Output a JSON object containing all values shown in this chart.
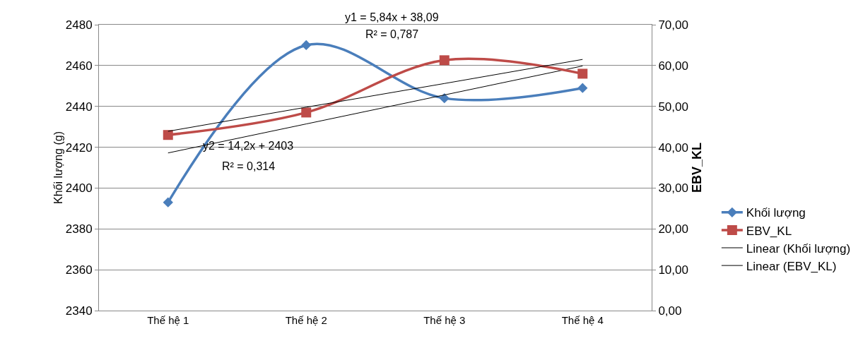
{
  "chart_data": {
    "type": "line",
    "ylabel": "Khối lượng (g)",
    "y2label": "EBV_KL",
    "categories": [
      "Thế hệ 1",
      "Thế hệ 2",
      "Thế hệ 3",
      "Thế hệ 4"
    ],
    "series": [
      {
        "name": "Khối lượng",
        "color": "#4a7ebb",
        "values": [
          2393,
          2470,
          2444,
          2449
        ],
        "marker": "diamond"
      },
      {
        "name": "EBV_KL",
        "color": "#be4b48",
        "values": [
          43,
          48.5,
          61.3,
          58
        ],
        "axis": "y2",
        "marker": "square"
      },
      {
        "name": "Linear (Khối lượng)",
        "color": "#000000",
        "values": [
          2417.2,
          2431.4,
          2445.6,
          2459.8
        ],
        "marker": "none"
      },
      {
        "name": "Linear (EBV_KL)",
        "color": "#000000",
        "values": [
          43.9,
          49.8,
          55.6,
          61.5
        ],
        "axis": "y2",
        "marker": "none"
      }
    ],
    "ylim": [
      2340,
      2480
    ],
    "yticks": [
      2340,
      2360,
      2380,
      2400,
      2420,
      2440,
      2460,
      2480
    ],
    "y2lim": [
      0,
      70
    ],
    "y2ticks": [
      {
        "value": 0,
        "label": "0,00"
      },
      {
        "value": 10,
        "label": "10,00"
      },
      {
        "value": 20,
        "label": "20,00"
      },
      {
        "value": 30,
        "label": "30,00"
      },
      {
        "value": 40,
        "label": "40,00"
      },
      {
        "value": 50,
        "label": "50,00"
      },
      {
        "value": 60,
        "label": "60,00"
      },
      {
        "value": 70,
        "label": "70,00"
      }
    ],
    "annotations": [
      "y1 = 5,84x + 38,09",
      "R² = 0,787",
      "y2 = 14,2x + 2403",
      "R² = 0,314"
    ],
    "grid": "y",
    "legend": "right",
    "line_style": "solid"
  }
}
